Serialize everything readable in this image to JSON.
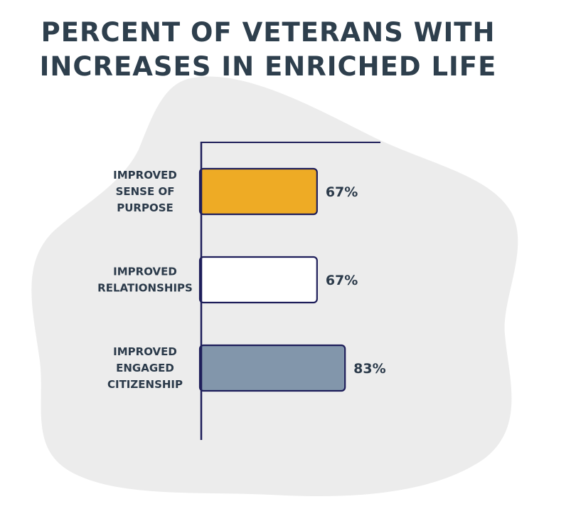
{
  "chart_data": {
    "type": "bar",
    "orientation": "horizontal",
    "title_lines": [
      "PERCENT OF VETERANS WITH",
      "INCREASES IN ENRICHED LIFE"
    ],
    "categories": [
      [
        "IMPROVED",
        "SENSE OF",
        "PURPOSE"
      ],
      [
        "IMPROVED",
        "RELATIONSHIPS"
      ],
      [
        "IMPROVED",
        "ENGAGED",
        "CITIZENSHIP"
      ]
    ],
    "values": [
      67,
      67,
      83
    ],
    "value_labels": [
      "67%",
      "67%",
      "83%"
    ],
    "bar_colors": [
      "#eeab25",
      "#ffffff",
      "#8296ab"
    ],
    "outline_color": "#1e1e5a",
    "xlim": [
      0,
      100
    ],
    "grid": false,
    "legend": "none"
  }
}
